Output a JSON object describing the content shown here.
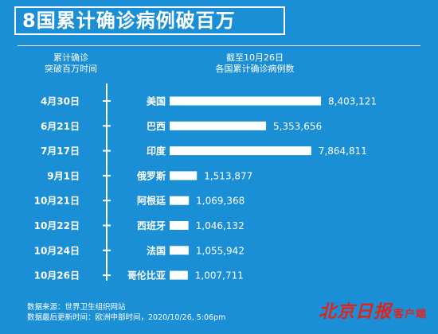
{
  "title": "8国累计确诊病例破百万",
  "header_left": [
    "累计确诊",
    "突破百万时间"
  ],
  "header_right": [
    "截至10月26日",
    "各国累计确诊病例数"
  ],
  "footer": {
    "source": "数据来源：世界卫生组织网站",
    "updated": "数据最后更新时间：欧洲中部时间，2020/10/26, 5:06pm"
  },
  "logo": {
    "main": "北京日报",
    "sub": "客户端"
  },
  "colors": {
    "background": "#1b8fd6",
    "bar": "#ffffff",
    "text": "#ffffff",
    "logo": "#e2231a"
  },
  "chart_data": {
    "type": "bar",
    "orientation": "horizontal",
    "categories": [
      "美国",
      "巴西",
      "印度",
      "俄罗斯",
      "阿根廷",
      "西班牙",
      "法国",
      "哥伦比亚"
    ],
    "dates": [
      "4月30日",
      "6月21日",
      "7月17日",
      "9月1日",
      "10月21日",
      "10月22日",
      "10月24日",
      "10月26日"
    ],
    "values": [
      8403121,
      5353656,
      7864811,
      1513877,
      1069368,
      1046132,
      1055942,
      1007711
    ],
    "value_labels": [
      "8,403,121",
      "5,353,656",
      "7,864,811",
      "1,513,877",
      "1,069,368",
      "1,046,132",
      "1,055,942",
      "1,007,711"
    ]
  }
}
